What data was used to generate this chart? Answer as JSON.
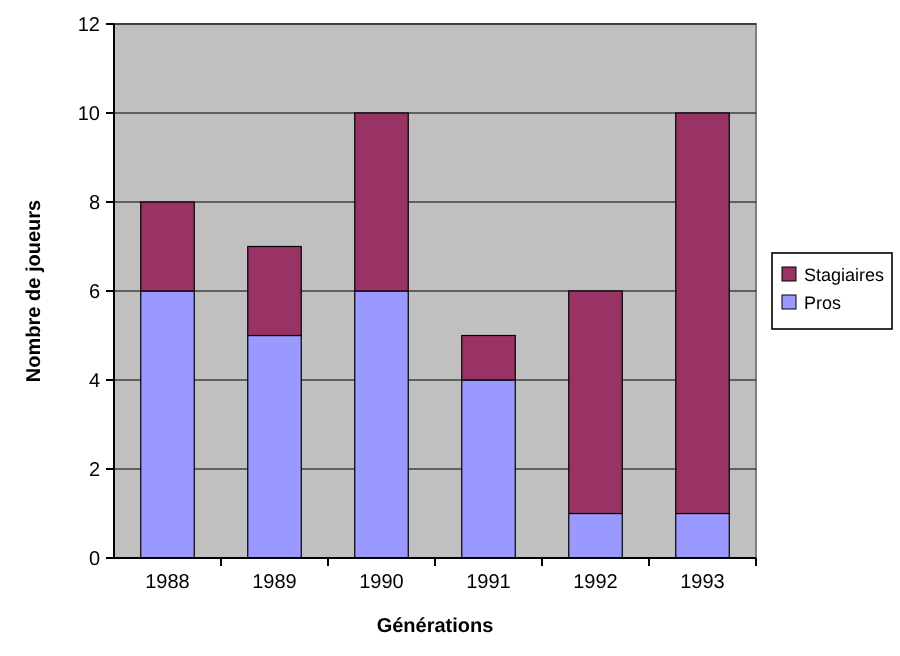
{
  "chart_data": {
    "type": "bar",
    "stacked": true,
    "xlabel": "Générations",
    "ylabel": "Nombre de joueurs",
    "categories": [
      "1988",
      "1989",
      "1990",
      "1991",
      "1992",
      "1993"
    ],
    "series": [
      {
        "name": "Pros",
        "color": "#9999ff",
        "values": [
          6,
          5,
          6,
          4,
          1,
          1
        ]
      },
      {
        "name": "Stagiaires",
        "color": "#993366",
        "values": [
          2,
          2,
          4,
          1,
          5,
          9
        ]
      }
    ],
    "ylim": [
      0,
      12
    ],
    "yticks": [
      0,
      2,
      4,
      6,
      8,
      10,
      12
    ],
    "grid": "y",
    "legend": "right"
  }
}
